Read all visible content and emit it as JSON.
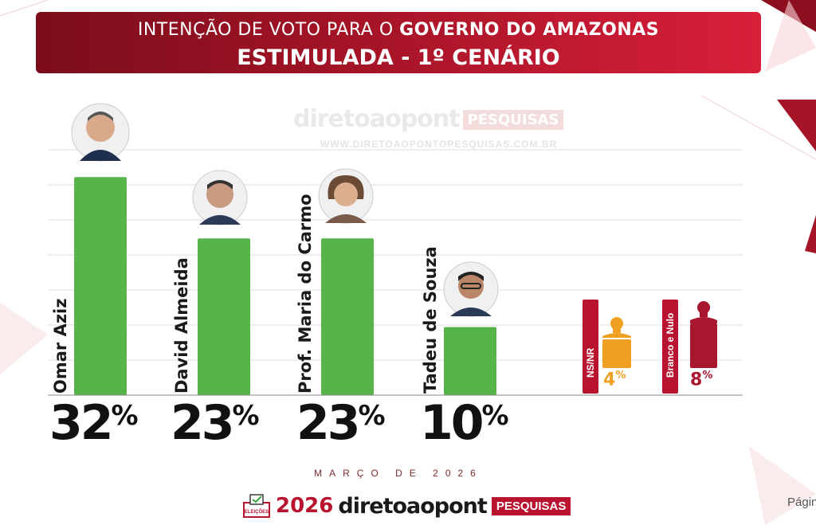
{
  "header": {
    "line1_prefix": "INTENÇÃO DE VOTO PARA O",
    "line1_bold": "GOVERNO DO AMAZONAS",
    "line2": "ESTIMULADA - 1º CENÁRIO"
  },
  "watermark": {
    "brand": "diretoaopont",
    "tag": "PESQUISAS",
    "url": "WWW.DIRETOAOPONTOPESQUISAS.COM.BR"
  },
  "chart_data": {
    "type": "bar",
    "title": "INTENÇÃO DE VOTO PARA O GOVERNO DO AMAZONAS",
    "subtitle": "ESTIMULADA - 1º CENÁRIO",
    "categories": [
      "Omar Aziz",
      "David Almeida",
      "Prof. Maria do Carmo",
      "Tadeu de Souza"
    ],
    "values": [
      32,
      23,
      23,
      10
    ],
    "value_labels": [
      "32",
      "23",
      "23",
      "10"
    ],
    "unit": "%",
    "ylim": [
      0,
      36
    ],
    "grid": true,
    "others": [
      {
        "label": "NS/NR",
        "value": 4,
        "value_label": "4",
        "color": "#f0a020"
      },
      {
        "label": "Branco e Nulo",
        "value": 8,
        "value_label": "8",
        "color": "#a81630"
      }
    ]
  },
  "colors": {
    "bar": "#57b44a",
    "accent": "#b8132f",
    "header_dark": "#7a0d1c",
    "header_light": "#d81f3a"
  },
  "date": "MARÇO DE 2026",
  "footer": {
    "badge": "ELEIÇÕES",
    "year": "2026",
    "brand": "diretoaopont",
    "tag": "PESQUISAS"
  },
  "page_label": "Págin"
}
